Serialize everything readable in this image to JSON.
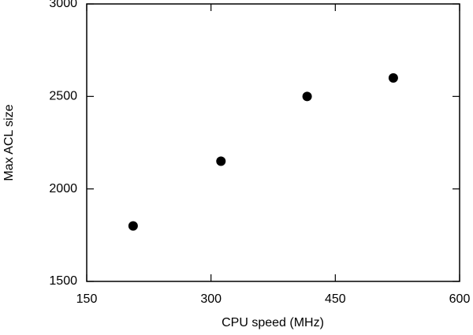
{
  "chart_data": {
    "type": "scatter",
    "x_label": "CPU speed (MHz)",
    "y_label": "Max ACL size",
    "x": [
      206,
      312,
      416,
      520
    ],
    "values": [
      1800,
      2150,
      2500,
      2600
    ],
    "color": "#000000",
    "xlim": [
      150,
      600
    ],
    "xticks": [
      150,
      300,
      450,
      600
    ],
    "ylim": [
      1500,
      3000
    ],
    "yticks": [
      1500,
      2000,
      2500,
      3000
    ],
    "grid": false
  }
}
